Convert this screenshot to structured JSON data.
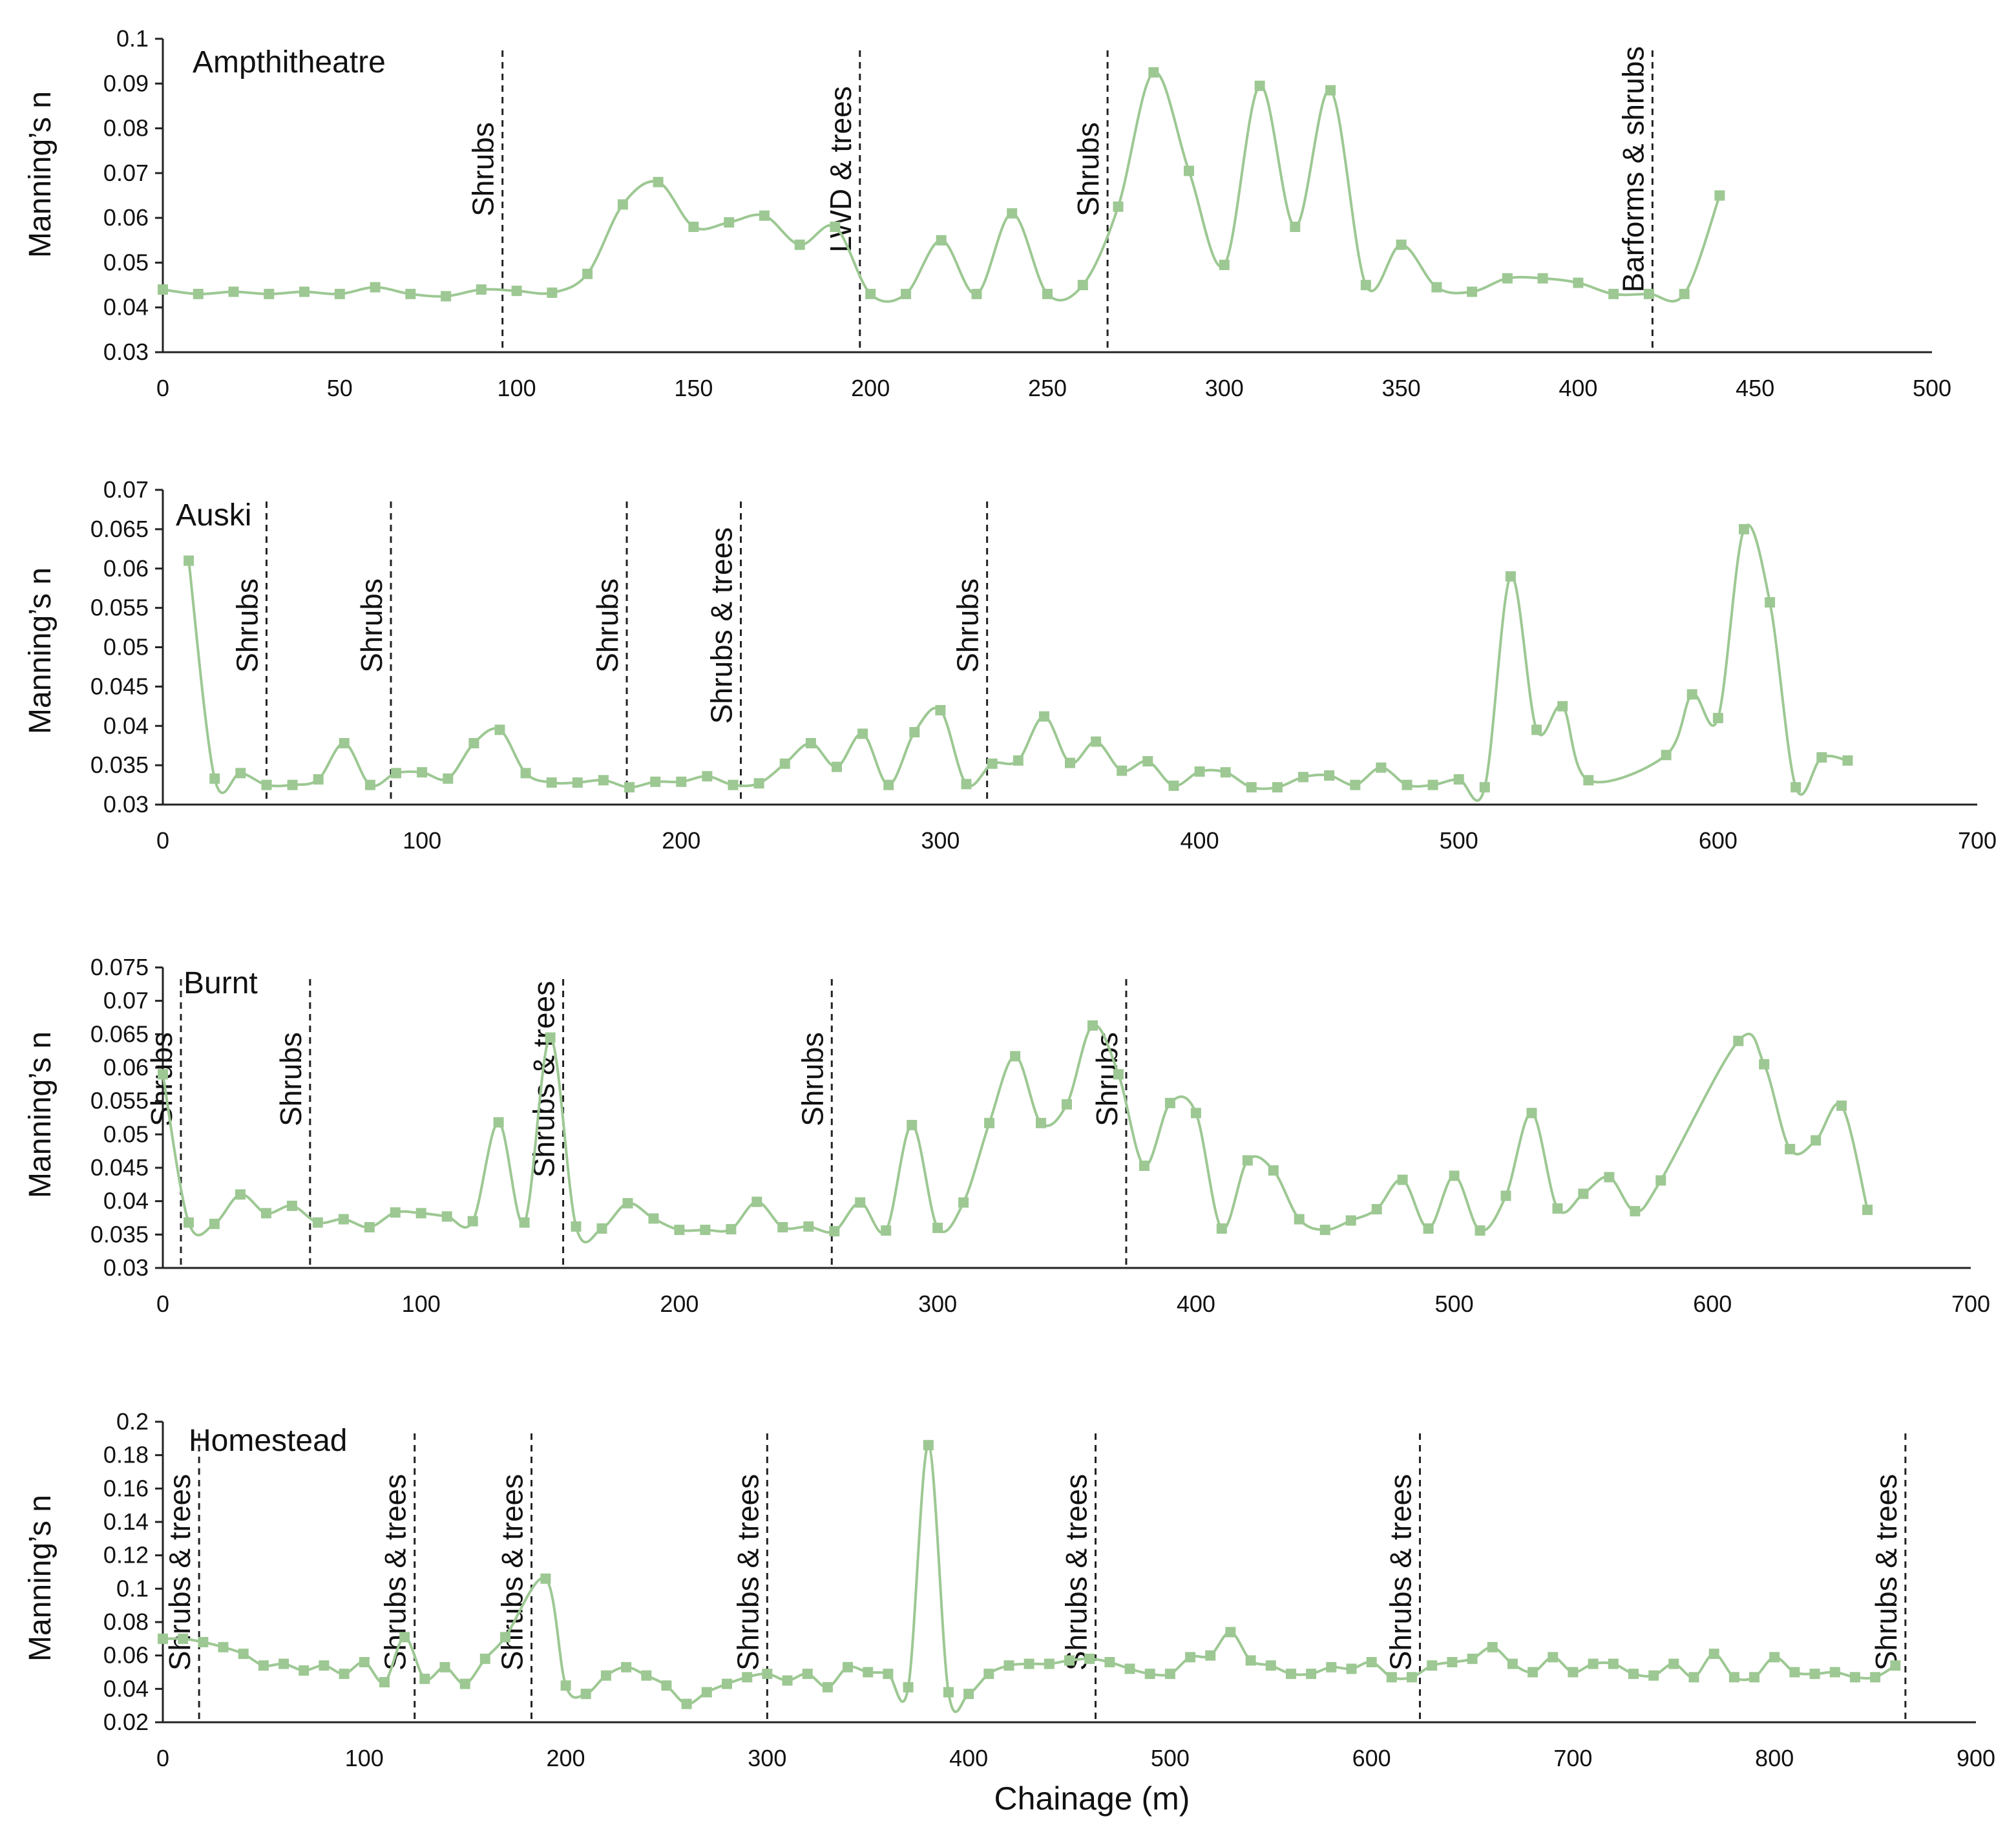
{
  "colors": {
    "series": "#9dc893",
    "axis": "#222222",
    "boundary": "#222222"
  },
  "x_label": "Chainage (m)",
  "chart_data": [
    {
      "type": "line",
      "title": "Ampthitheatre",
      "ylabel": "Manning’s n",
      "xlabel": "",
      "xlim": [
        0,
        500
      ],
      "ylim": [
        0.03,
        0.1
      ],
      "x_ticks": [
        0,
        50,
        100,
        150,
        200,
        250,
        300,
        350,
        400,
        450,
        500
      ],
      "x_tick_labels": [
        "0",
        "50",
        "100",
        "150",
        "200",
        "250",
        "300",
        "350",
        "400",
        "450",
        "500"
      ],
      "y_ticks": [
        0.03,
        0.04,
        0.05,
        0.06,
        0.07,
        0.08,
        0.09,
        0.1
      ],
      "y_tick_labels": [
        "0.03",
        "0.04",
        "0.05",
        "0.06",
        "0.07",
        "0.08",
        "0.09",
        "0.1"
      ],
      "boundaries": [
        {
          "x": 96,
          "label": "Shrubs"
        },
        {
          "x": 197,
          "label": "LWD & trees"
        },
        {
          "x": 267,
          "label": "Shrubs"
        },
        {
          "x": 421,
          "label": "Barforms & shrubs"
        }
      ],
      "series": [
        {
          "name": "Ampthitheatre",
          "x": [
            0,
            10,
            20,
            30,
            40,
            50,
            60,
            70,
            80,
            90,
            100,
            110,
            120,
            130,
            140,
            150,
            160,
            170,
            180,
            190,
            200,
            210,
            220,
            230,
            240,
            250,
            260,
            270,
            280,
            290,
            300,
            310,
            320,
            330,
            340,
            350,
            360,
            370,
            380,
            390,
            400,
            410,
            420,
            430,
            440
          ],
          "y": [
            0.044,
            0.043,
            0.0435,
            0.043,
            0.0435,
            0.043,
            0.0445,
            0.043,
            0.0425,
            0.044,
            0.0437,
            0.0433,
            0.0475,
            0.063,
            0.068,
            0.058,
            0.059,
            0.0605,
            0.054,
            0.058,
            0.043,
            0.043,
            0.055,
            0.043,
            0.061,
            0.043,
            0.045,
            0.0625,
            0.0925,
            0.0705,
            0.0495,
            0.0895,
            0.058,
            0.0885,
            0.045,
            0.054,
            0.0445,
            0.0435,
            0.0465,
            0.0465,
            0.0455,
            0.043,
            0.043,
            0.043,
            0.065
          ]
        }
      ]
    },
    {
      "type": "line",
      "title": "Auski",
      "ylabel": "Manning’s n",
      "xlabel": "",
      "xlim": [
        0,
        700
      ],
      "ylim": [
        0.03,
        0.07
      ],
      "x_ticks": [
        0,
        100,
        200,
        300,
        400,
        500,
        600,
        700
      ],
      "x_tick_labels": [
        "0",
        "100",
        "200",
        "300",
        "400",
        "500",
        "600",
        "700"
      ],
      "y_ticks": [
        0.03,
        0.035,
        0.04,
        0.045,
        0.05,
        0.055,
        0.06,
        0.065,
        0.07
      ],
      "y_tick_labels": [
        "0.03",
        "0.035",
        "0.04",
        "0.045",
        "0.05",
        "0.055",
        "0.06",
        "0.065",
        "0.07"
      ],
      "boundaries": [
        {
          "x": 40,
          "label": "Shrubs"
        },
        {
          "x": 88,
          "label": "Shrubs"
        },
        {
          "x": 179,
          "label": "Shrubs"
        },
        {
          "x": 223,
          "label": "Shrubs & trees"
        },
        {
          "x": 318,
          "label": "Shrubs"
        }
      ],
      "series": [
        {
          "name": "Auski",
          "x": [
            10,
            20,
            30,
            40,
            50,
            60,
            70,
            80,
            90,
            100,
            110,
            120,
            130,
            140,
            150,
            160,
            170,
            180,
            190,
            200,
            210,
            220,
            230,
            240,
            250,
            260,
            270,
            280,
            290,
            300,
            310,
            320,
            330,
            340,
            350,
            360,
            370,
            380,
            390,
            400,
            410,
            420,
            430,
            440,
            450,
            460,
            470,
            480,
            490,
            500,
            510,
            520,
            530,
            540,
            550,
            580,
            590,
            600,
            610,
            620,
            630,
            640,
            650
          ],
          "y": [
            0.061,
            0.0333,
            0.034,
            0.0325,
            0.0325,
            0.0332,
            0.0378,
            0.0325,
            0.034,
            0.0341,
            0.0333,
            0.0378,
            0.0395,
            0.034,
            0.0328,
            0.0328,
            0.0331,
            0.0322,
            0.0329,
            0.0329,
            0.0336,
            0.0325,
            0.0327,
            0.0352,
            0.0378,
            0.0348,
            0.039,
            0.0325,
            0.0392,
            0.042,
            0.0326,
            0.0352,
            0.0356,
            0.0412,
            0.0353,
            0.038,
            0.0343,
            0.0355,
            0.0324,
            0.0342,
            0.0341,
            0.0322,
            0.0322,
            0.0335,
            0.0337,
            0.0325,
            0.0347,
            0.0325,
            0.0325,
            0.0332,
            0.0322,
            0.059,
            0.0395,
            0.0425,
            0.0331,
            0.0363,
            0.044,
            0.041,
            0.065,
            0.0557,
            0.0322,
            0.036,
            0.0356
          ]
        }
      ]
    },
    {
      "type": "line",
      "title": "Burnt",
      "ylabel": "Manning’s n",
      "xlabel": "",
      "xlim": [
        0,
        700
      ],
      "ylim": [
        0.03,
        0.075
      ],
      "x_ticks": [
        0,
        100,
        200,
        300,
        400,
        500,
        600,
        700
      ],
      "x_tick_labels": [
        "0",
        "100",
        "200",
        "300",
        "400",
        "500",
        "600",
        "700"
      ],
      "y_ticks": [
        0.03,
        0.035,
        0.04,
        0.045,
        0.05,
        0.055,
        0.06,
        0.065,
        0.07,
        0.075
      ],
      "y_tick_labels": [
        "0.03",
        "0.035",
        "0.04",
        "0.045",
        "0.05",
        "0.055",
        "0.06",
        "0.065",
        "0.07",
        "0.075"
      ],
      "boundaries": [
        {
          "x": 7,
          "label": "Shrubs"
        },
        {
          "x": 57,
          "label": "Shrubs"
        },
        {
          "x": 155,
          "label": "Shrubs & trees"
        },
        {
          "x": 259,
          "label": "Shrubs"
        },
        {
          "x": 373,
          "label": "Shrubs"
        }
      ],
      "series": [
        {
          "name": "Burnt",
          "x": [
            0,
            10,
            20,
            30,
            40,
            50,
            60,
            70,
            80,
            90,
            100,
            110,
            120,
            130,
            140,
            150,
            160,
            170,
            180,
            190,
            200,
            210,
            220,
            230,
            240,
            250,
            260,
            270,
            280,
            290,
            300,
            310,
            320,
            330,
            340,
            350,
            360,
            370,
            380,
            390,
            400,
            410,
            420,
            430,
            440,
            450,
            460,
            470,
            480,
            490,
            500,
            510,
            520,
            530,
            540,
            550,
            560,
            570,
            580,
            610,
            620,
            630,
            640,
            650,
            660
          ],
          "y": [
            0.059,
            0.0368,
            0.0366,
            0.041,
            0.0382,
            0.0393,
            0.0368,
            0.0373,
            0.0361,
            0.0383,
            0.0382,
            0.0377,
            0.037,
            0.0518,
            0.0368,
            0.0645,
            0.0362,
            0.0359,
            0.0397,
            0.0374,
            0.0357,
            0.0357,
            0.0358,
            0.0399,
            0.0361,
            0.0362,
            0.0355,
            0.0398,
            0.0356,
            0.0514,
            0.036,
            0.0398,
            0.0517,
            0.0617,
            0.0517,
            0.0545,
            0.0663,
            0.059,
            0.0453,
            0.0547,
            0.0532,
            0.0359,
            0.0461,
            0.0446,
            0.0373,
            0.0357,
            0.0371,
            0.0388,
            0.0432,
            0.0359,
            0.0438,
            0.0356,
            0.0408,
            0.0532,
            0.0389,
            0.0411,
            0.0436,
            0.0385,
            0.0431,
            0.064,
            0.0605,
            0.0478,
            0.0491,
            0.0543,
            0.0387
          ]
        }
      ]
    },
    {
      "type": "line",
      "title": "Homestead",
      "ylabel": "Manning’s n",
      "xlabel": "Chainage (m)",
      "xlim": [
        0,
        900
      ],
      "ylim": [
        0.02,
        0.2
      ],
      "x_ticks": [
        0,
        100,
        200,
        300,
        400,
        500,
        600,
        700,
        800,
        900
      ],
      "x_tick_labels": [
        "0",
        "100",
        "200",
        "300",
        "400",
        "500",
        "600",
        "700",
        "800",
        "900"
      ],
      "y_ticks": [
        0.02,
        0.04,
        0.06,
        0.08,
        0.1,
        0.12,
        0.14,
        0.16,
        0.18,
        0.2
      ],
      "y_tick_labels": [
        "0.02",
        "0.04",
        "0.06",
        "0.08",
        "0.1",
        "0.12",
        "0.14",
        "0.16",
        "0.18",
        "0.2"
      ],
      "boundaries": [
        {
          "x": 18,
          "label": "Shrubs & trees"
        },
        {
          "x": 125,
          "label": "Shrubs & trees"
        },
        {
          "x": 183,
          "label": "Shrubs & trees"
        },
        {
          "x": 300,
          "label": "Shrubs & trees"
        },
        {
          "x": 463,
          "label": "Shrubs & trees"
        },
        {
          "x": 624,
          "label": "Shrubs & trees"
        },
        {
          "x": 865,
          "label": "Shrubs & trees"
        }
      ],
      "series": [
        {
          "name": "Homestead",
          "x": [
            0,
            10,
            20,
            30,
            40,
            50,
            60,
            70,
            80,
            90,
            100,
            110,
            120,
            130,
            140,
            150,
            160,
            170,
            190,
            200,
            210,
            220,
            230,
            240,
            250,
            260,
            270,
            280,
            290,
            300,
            310,
            320,
            330,
            340,
            350,
            360,
            370,
            380,
            390,
            400,
            410,
            420,
            430,
            440,
            450,
            460,
            470,
            480,
            490,
            500,
            510,
            520,
            530,
            540,
            550,
            560,
            570,
            580,
            590,
            600,
            610,
            620,
            630,
            640,
            650,
            660,
            670,
            680,
            690,
            700,
            710,
            720,
            730,
            740,
            750,
            760,
            770,
            780,
            790,
            800,
            810,
            820,
            830,
            840,
            850,
            860
          ],
          "y": [
            0.07,
            0.07,
            0.068,
            0.065,
            0.061,
            0.054,
            0.055,
            0.051,
            0.054,
            0.049,
            0.056,
            0.044,
            0.071,
            0.046,
            0.053,
            0.043,
            0.058,
            0.071,
            0.106,
            0.042,
            0.037,
            0.048,
            0.053,
            0.048,
            0.042,
            0.031,
            0.038,
            0.043,
            0.047,
            0.049,
            0.045,
            0.049,
            0.041,
            0.053,
            0.05,
            0.049,
            0.041,
            0.186,
            0.038,
            0.037,
            0.049,
            0.054,
            0.055,
            0.055,
            0.057,
            0.058,
            0.056,
            0.052,
            0.049,
            0.049,
            0.059,
            0.06,
            0.074,
            0.057,
            0.054,
            0.049,
            0.049,
            0.053,
            0.052,
            0.056,
            0.047,
            0.047,
            0.054,
            0.056,
            0.058,
            0.065,
            0.055,
            0.05,
            0.059,
            0.05,
            0.055,
            0.055,
            0.049,
            0.048,
            0.055,
            0.047,
            0.061,
            0.047,
            0.047,
            0.059,
            0.05,
            0.049,
            0.05,
            0.047,
            0.047,
            0.054
          ]
        }
      ]
    }
  ]
}
